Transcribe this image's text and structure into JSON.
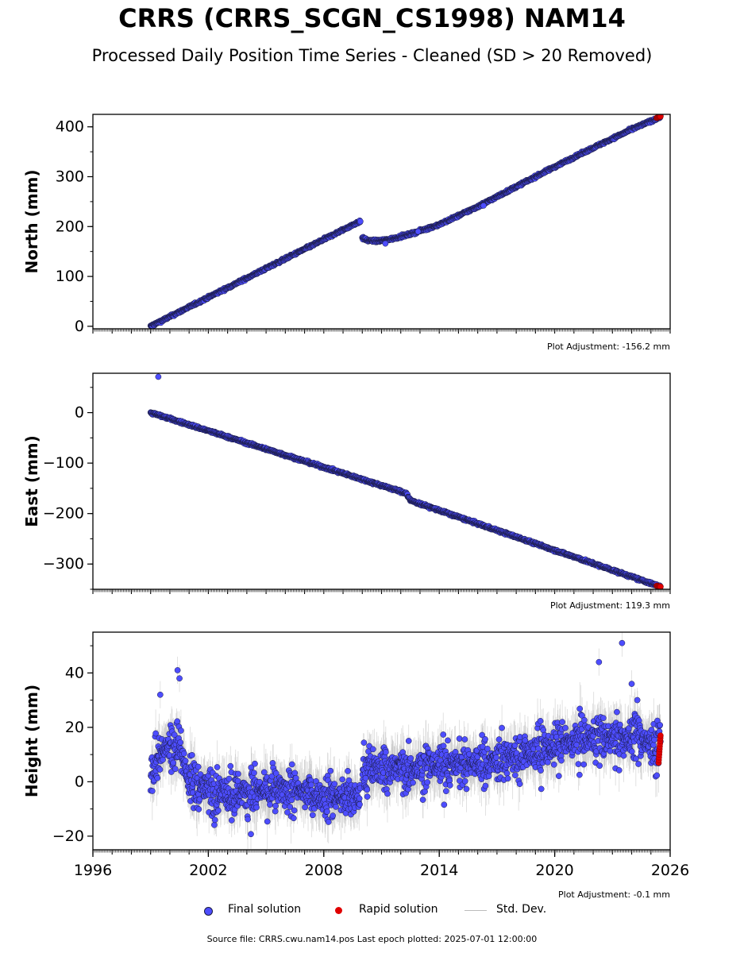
{
  "title": "CRRS (CRRS_SCGN_CS1998) NAM14",
  "subtitle": "Processed Daily Position Time Series - Cleaned (SD > 20 Removed)",
  "footer": "Source file: CRRS.cwu.nam14.pos  Last epoch plotted: 2025-07-01 12:00:00",
  "colors": {
    "final": "#4d4dff",
    "final_edge": "#1a1a40",
    "rapid": "#e00000",
    "stddev": "#bbbbbb"
  },
  "legend": {
    "final": "Final solution",
    "rapid": "Rapid solution",
    "stddev": "Std. Dev."
  },
  "chart_data": [
    {
      "type": "scatter",
      "ylabel": "North (mm)",
      "adjustment": "Plot Adjustment: -156.2 mm",
      "xlim": [
        1996,
        2026
      ],
      "ylim": [
        -5,
        425
      ],
      "yticks": [
        0,
        100,
        200,
        300,
        400
      ],
      "show_xtick_labels": false,
      "series": [
        {
          "segments": [
            {
              "x": [
                1999.0,
                2009.9
              ],
              "y": [
                0,
                211
              ]
            },
            {
              "x": [
                2010.0,
                2010.3,
                2010.8,
                2011.5,
                2012.5,
                2014.0,
                2016.0,
                2018.0,
                2020.0,
                2022.0,
                2024.0,
                2025.5
              ],
              "y": [
                177,
                172,
                171,
                175,
                185,
                204,
                240,
                280,
                320,
                358,
                395,
                420
              ]
            }
          ]
        }
      ],
      "outliers": [
        [
          2011.2,
          166
        ],
        [
          2012.9,
          190
        ],
        [
          2016.3,
          242
        ]
      ],
      "rapid": {
        "x": [
          2025.3,
          2025.5
        ],
        "y": [
          418,
          421
        ]
      }
    },
    {
      "type": "scatter",
      "ylabel": "East (mm)",
      "adjustment": "Plot Adjustment: 119.3 mm",
      "xlim": [
        1996,
        2026
      ],
      "ylim": [
        -350,
        78
      ],
      "yticks": [
        0,
        -100,
        -200,
        -300
      ],
      "show_xtick_labels": false,
      "series": [
        {
          "segments": [
            {
              "x": [
                1999.0,
                2012.3
              ],
              "y": [
                0,
                -160
              ]
            },
            {
              "x": [
                2012.3,
                2012.5
              ],
              "y": [
                -160,
                -174
              ]
            },
            {
              "x": [
                2012.5,
                2025.5
              ],
              "y": [
                -174,
                -345
              ]
            }
          ]
        }
      ],
      "outliers": [
        [
          1999.4,
          71
        ]
      ],
      "rapid": {
        "x": [
          2025.3,
          2025.5
        ],
        "y": [
          -343,
          -345
        ]
      }
    },
    {
      "type": "scatter",
      "ylabel": "Height (mm)",
      "adjustment": "Plot Adjustment: -0.1 mm",
      "xlim": [
        1996,
        2026
      ],
      "ylim": [
        -25,
        55
      ],
      "yticks": [
        -20,
        0,
        20,
        40
      ],
      "xticks": [
        1996,
        2002,
        2008,
        2014,
        2020,
        2026
      ],
      "show_xtick_labels": true,
      "series": [
        {
          "trend": {
            "x": [
              1999.0,
              1999.5,
              2000.5,
              2001.0,
              2002.0,
              2004.0,
              2006.0,
              2008.0,
              2009.9,
              2010.0,
              2012.0,
              2014.0,
              2016.0,
              2018.0,
              2020.0,
              2022.0,
              2024.0,
              2025.5
            ],
            "y": [
              2,
              12,
              14,
              0,
              -3,
              -4,
              -3,
              -5,
              -6,
              5,
              5,
              6,
              7,
              9,
              13,
              16,
              16,
              14
            ]
          },
          "scatter_mm": 8
        }
      ],
      "outliers": [
        [
          2023.5,
          51
        ],
        [
          2022.3,
          44
        ],
        [
          2000.4,
          41
        ],
        [
          2000.5,
          38
        ],
        [
          2024.0,
          36
        ],
        [
          1999.5,
          32
        ]
      ],
      "rapid": {
        "x": [
          2025.4,
          2025.5
        ],
        "y": [
          7,
          17
        ]
      }
    }
  ]
}
